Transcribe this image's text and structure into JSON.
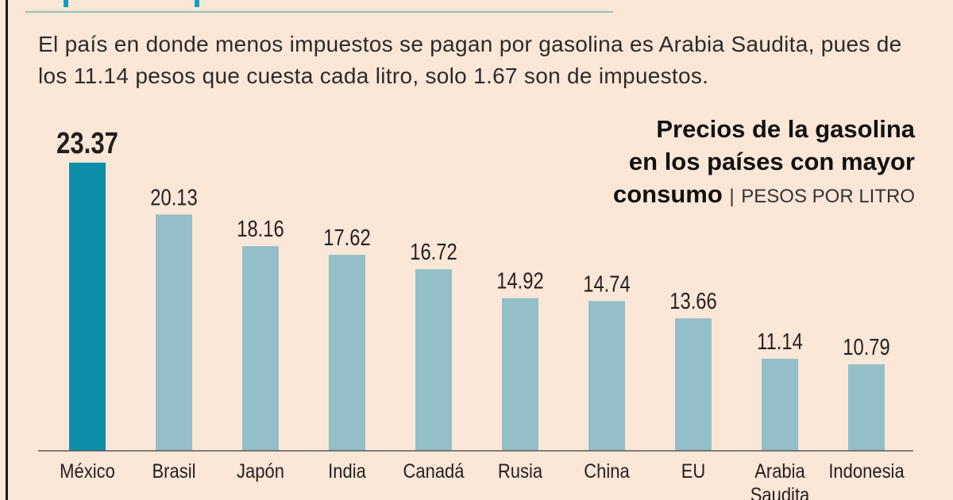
{
  "intro_text": "El país en donde menos impuestos se pagan por gasolina es Arabia Saudita, pues de los 11.14 pesos que cuesta cada litro, solo 1.67 son de impuestos.",
  "chart_data": {
    "type": "bar",
    "title_line1": "Precios de la gasolina",
    "title_line2": "en los países con mayor",
    "title_line3": "consumo",
    "unit_separator": "|",
    "unit": "PESOS POR LITRO",
    "categories": [
      "México",
      "Brasil",
      "Japón",
      "India",
      "Canadá",
      "Rusia",
      "China",
      "EU",
      "Arabia Saudita",
      "Indonesia"
    ],
    "values": [
      23.37,
      20.13,
      18.16,
      17.62,
      16.72,
      14.92,
      14.74,
      13.66,
      11.14,
      10.79
    ],
    "data_labels": [
      "23.37",
      "20.13",
      "18.16",
      "17.62",
      "16.72",
      "14.92",
      "14.74",
      "13.66",
      "11.14",
      "10.79"
    ],
    "highlight": "México",
    "colors": {
      "highlight": "#0e8ea8",
      "default": "#93bfc8",
      "background": "#fbe7d8"
    },
    "grid": false,
    "xlabel": "",
    "ylabel": ""
  }
}
